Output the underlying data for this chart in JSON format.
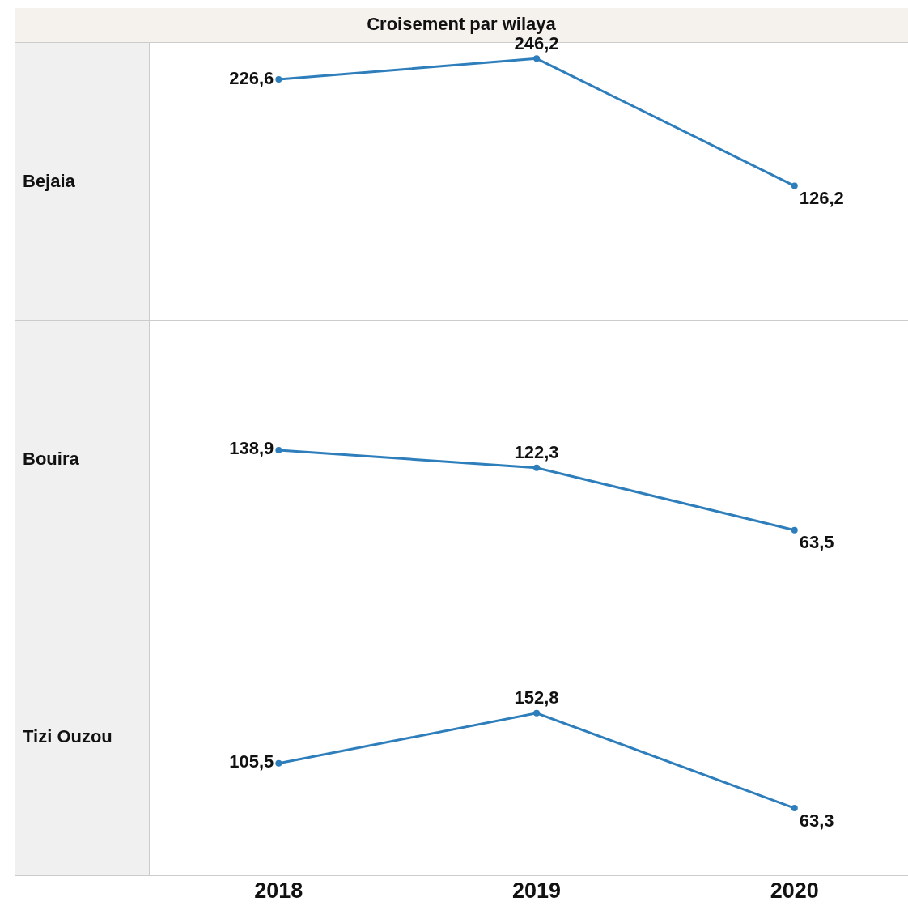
{
  "chart_data": [
    {
      "type": "line",
      "title": "Croisement par wilaya",
      "ylabel": "Bejaia",
      "categories": [
        "2018",
        "2019",
        "2020"
      ],
      "series": [
        {
          "color": "#2e7ebc",
          "values": [
            226.6,
            246.2,
            126.2
          ],
          "value_labels": [
            "226,6",
            "246,2",
            "126,2"
          ]
        }
      ],
      "marker": "circle",
      "tick_labels": false,
      "grid": false
    },
    {
      "type": "line",
      "ylabel": "Bouira",
      "categories": [
        "2018",
        "2019",
        "2020"
      ],
      "series": [
        {
          "color": "#2e7ebc",
          "values": [
            138.9,
            122.3,
            63.5
          ],
          "value_labels": [
            "138,9",
            "122,3",
            "63,5"
          ]
        }
      ],
      "marker": "circle",
      "tick_labels": false,
      "grid": false
    },
    {
      "type": "line",
      "ylabel": "Tizi Ouzou",
      "categories": [
        "2018",
        "2019",
        "2020"
      ],
      "series": [
        {
          "color": "#2e7ebc",
          "values": [
            105.5,
            152.8,
            63.3
          ],
          "value_labels": [
            "105,5",
            "152,8",
            "63,3"
          ]
        }
      ],
      "marker": "circle",
      "tick_labels": "x",
      "grid": false
    }
  ]
}
